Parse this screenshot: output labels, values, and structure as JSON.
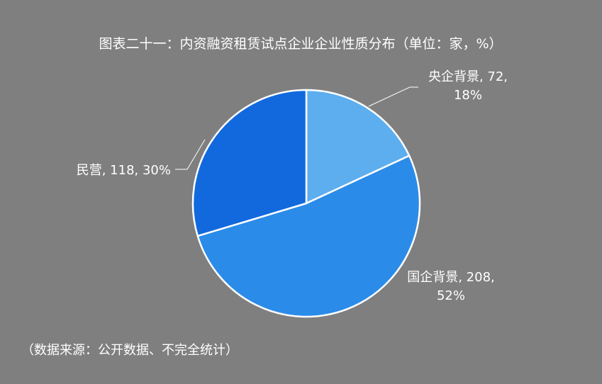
{
  "chart_data": {
    "type": "pie",
    "title": "图表二十一：内资融资租赁试点企业企业性质分布（单位：家，%）",
    "unit": "家",
    "slices": [
      {
        "name": "央企背景",
        "value": 72,
        "percent": 18,
        "color": "#5caeee",
        "label_line1": "央企背景, 72,",
        "label_line2": "18%"
      },
      {
        "name": "国企背景",
        "value": 208,
        "percent": 52,
        "color": "#2b8be8",
        "label_line1": "国企背景, 208,",
        "label_line2": "52%"
      },
      {
        "name": "民营",
        "value": 118,
        "percent": 30,
        "color": "#1269dd",
        "label_line1": "民营, 118, 30%",
        "label_line2": ""
      }
    ],
    "legend": "none",
    "slice_order": "clockwise from 12 o'clock"
  },
  "footer": {
    "source": "（数据来源：公开数据、不完全统计）"
  },
  "colors": {
    "background": "#7f7f7f",
    "slice_border": "#ffffff",
    "text": "#ffffff"
  }
}
